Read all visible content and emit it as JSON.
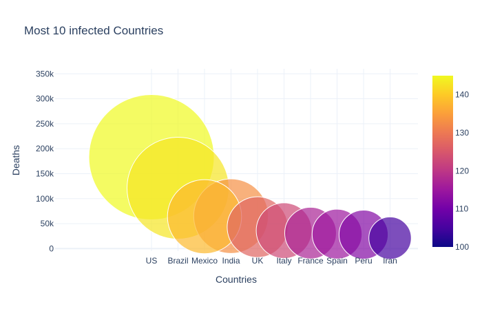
{
  "chart_data": {
    "type": "scatter",
    "title": "Most 10 infected Countries",
    "xlabel": "Countries",
    "ylabel": "Deaths",
    "categories": [
      "US",
      "Brazil",
      "Mexico",
      "India",
      "UK",
      "Italy",
      "France",
      "Spain",
      "Peru",
      "Iran"
    ],
    "y_values": [
      183000,
      121000,
      64000,
      65000,
      43000,
      36000,
      31000,
      29000,
      28000,
      21000
    ],
    "color_values": [
      145,
      143,
      138,
      133,
      127,
      123,
      117,
      115,
      112,
      105
    ],
    "y_ticks": [
      0,
      50000,
      100000,
      150000,
      200000,
      250000,
      300000,
      350000
    ],
    "y_tick_labels": [
      "0",
      "50k",
      "100k",
      "150k",
      "200k",
      "250k",
      "300k",
      "350k"
    ],
    "ylim": [
      -5000,
      360000
    ],
    "colorbar": {
      "range": [
        100,
        145
      ],
      "ticks": [
        100,
        110,
        120,
        130,
        140
      ],
      "tick_labels": [
        "100",
        "110",
        "120",
        "130",
        "140"
      ],
      "colorscale": [
        "#0d0887",
        "#46039f",
        "#7201a8",
        "#9c179e",
        "#bd3786",
        "#d8576b",
        "#ed7953",
        "#fb9f3a",
        "#fdca26",
        "#f0f921"
      ]
    },
    "grid": true,
    "marker_opacity": 0.7,
    "legend": "none"
  }
}
